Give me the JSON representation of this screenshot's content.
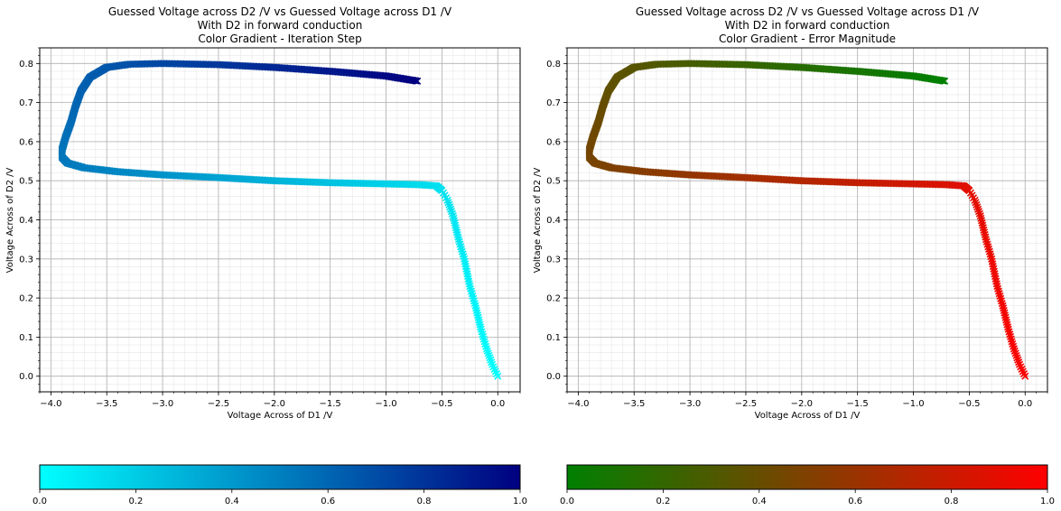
{
  "chart_data": [
    {
      "type": "scatter",
      "title": [
        "Guessed Voltage across D2 /V vs Guessed Voltage across D1 /V",
        "With D2 in forward conduction",
        "Color Gradient - Iteration Step"
      ],
      "xlabel": "Voltage Across of D1 /V",
      "ylabel": "Voltage Across of D2 /V",
      "xlim": [
        -4.1,
        0.2
      ],
      "ylim": [
        -0.04,
        0.84
      ],
      "xticks": [
        -4.0,
        -3.5,
        -3.0,
        -2.5,
        -2.0,
        -1.5,
        -1.0,
        -0.5,
        0.0
      ],
      "yticks": [
        0.0,
        0.1,
        0.2,
        0.3,
        0.4,
        0.5,
        0.6,
        0.7,
        0.8
      ],
      "xtick_labels": [
        "−4.0",
        "−3.5",
        "−3.0",
        "−2.5",
        "−2.0",
        "−1.5",
        "−1.0",
        "−0.5",
        "0.0"
      ],
      "ytick_labels": [
        "0.0",
        "0.1",
        "0.2",
        "0.3",
        "0.4",
        "0.5",
        "0.6",
        "0.7",
        "0.8"
      ],
      "grid": true,
      "marker": "x",
      "color_start": "#00ffff",
      "color_end": "#000080",
      "colorbar": {
        "ticks": [
          0.0,
          0.2,
          0.4,
          0.6,
          0.8,
          1.0
        ],
        "tick_labels": [
          "0.0",
          "0.2",
          "0.4",
          "0.6",
          "0.8",
          "1.0"
        ]
      }
    },
    {
      "type": "scatter",
      "title": [
        "Guessed Voltage across D2 /V vs Guessed Voltage across D1 /V",
        "With D2 in forward conduction",
        "Color Gradient - Error Magnitude"
      ],
      "xlabel": "Voltage Across of D1 /V",
      "ylabel": "Voltage Across of D2 /V",
      "xlim": [
        -4.1,
        0.2
      ],
      "ylim": [
        -0.04,
        0.84
      ],
      "xticks": [
        -4.0,
        -3.5,
        -3.0,
        -2.5,
        -2.0,
        -1.5,
        -1.0,
        -0.5,
        0.0
      ],
      "yticks": [
        0.0,
        0.1,
        0.2,
        0.3,
        0.4,
        0.5,
        0.6,
        0.7,
        0.8
      ],
      "xtick_labels": [
        "−4.0",
        "−3.5",
        "−3.0",
        "−2.5",
        "−2.0",
        "−1.5",
        "−1.0",
        "−0.5",
        "0.0"
      ],
      "ytick_labels": [
        "0.0",
        "0.1",
        "0.2",
        "0.3",
        "0.4",
        "0.5",
        "0.6",
        "0.7",
        "0.8"
      ],
      "grid": true,
      "marker": "x",
      "color_start": "#ff0000",
      "color_end": "#008000",
      "colorbar": {
        "ticks": [
          0.0,
          0.2,
          0.4,
          0.6,
          0.8,
          1.0
        ],
        "tick_labels": [
          "0.0",
          "0.2",
          "0.4",
          "0.6",
          "0.8",
          "1.0"
        ],
        "color_start": "#008000",
        "color_end": "#ff0000"
      }
    }
  ],
  "trajectory": {
    "path": [
      [
        0.0,
        0.0
      ],
      [
        -0.05,
        0.03
      ],
      [
        -0.1,
        0.07
      ],
      [
        -0.15,
        0.12
      ],
      [
        -0.2,
        0.18
      ],
      [
        -0.25,
        0.23
      ],
      [
        -0.3,
        0.3
      ],
      [
        -0.35,
        0.35
      ],
      [
        -0.4,
        0.41
      ],
      [
        -0.45,
        0.45
      ],
      [
        -0.5,
        0.475
      ],
      [
        -0.55,
        0.487
      ],
      [
        -0.7,
        0.49
      ],
      [
        -1.0,
        0.492
      ],
      [
        -1.5,
        0.495
      ],
      [
        -2.0,
        0.5
      ],
      [
        -2.5,
        0.508
      ],
      [
        -3.0,
        0.515
      ],
      [
        -3.4,
        0.523
      ],
      [
        -3.7,
        0.533
      ],
      [
        -3.85,
        0.545
      ],
      [
        -3.9,
        0.56
      ],
      [
        -3.9,
        0.58
      ],
      [
        -3.87,
        0.61
      ],
      [
        -3.82,
        0.65
      ],
      [
        -3.78,
        0.69
      ],
      [
        -3.73,
        0.73
      ],
      [
        -3.65,
        0.765
      ],
      [
        -3.5,
        0.79
      ],
      [
        -3.3,
        0.798
      ],
      [
        -3.0,
        0.8
      ],
      [
        -2.5,
        0.797
      ],
      [
        -2.0,
        0.79
      ],
      [
        -1.5,
        0.78
      ],
      [
        -1.0,
        0.768
      ],
      [
        -0.72,
        0.755
      ]
    ],
    "dense_from_x": -0.5
  }
}
